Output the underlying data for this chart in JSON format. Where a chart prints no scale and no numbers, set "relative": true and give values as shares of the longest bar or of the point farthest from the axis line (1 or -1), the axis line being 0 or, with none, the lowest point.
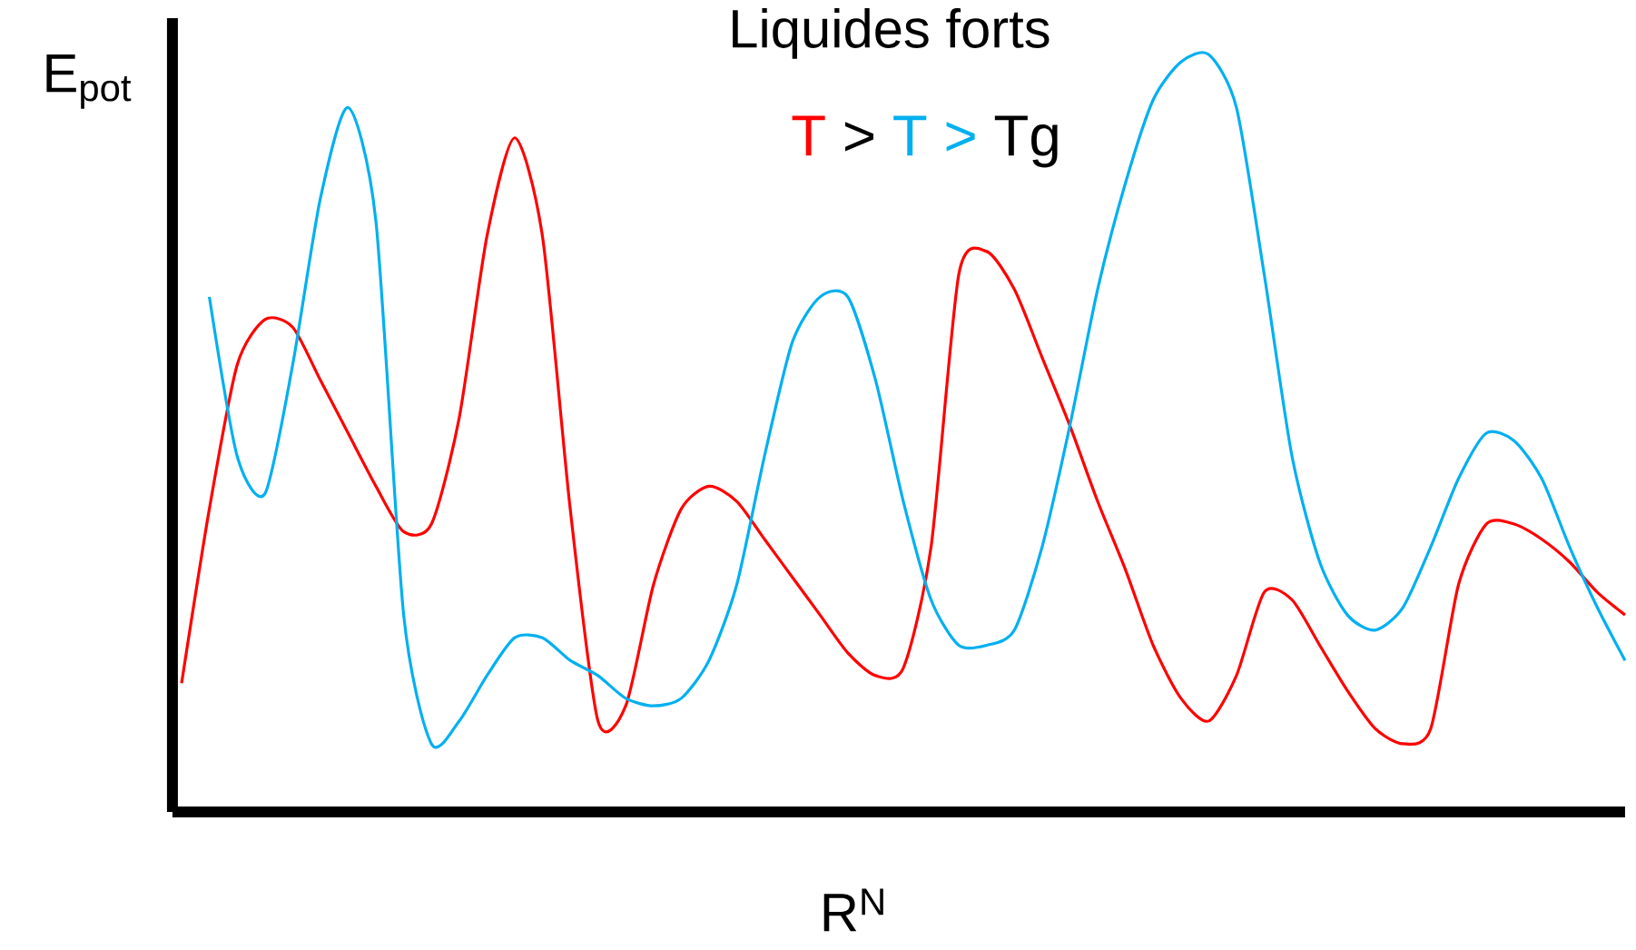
{
  "chart_data": {
    "type": "line",
    "relative": true,
    "title": "Liquides forts",
    "xlabel": "R$^{N}$",
    "ylabel": "E$_{pot}$",
    "annotations": [
      ">",
      ">",
      "Tg"
    ],
    "legend": "top",
    "categories": [
      null,
      null,
      null,
      null,
      null,
      null,
      null,
      null,
      null,
      null,
      null,
      null,
      null,
      null,
      null,
      null,
      null,
      null,
      null,
      null,
      null,
      null,
      null,
      null,
      null,
      null,
      null,
      null,
      null,
      null,
      null,
      null,
      null,
      null,
      null,
      null,
      null,
      null,
      null,
      null,
      null,
      null,
      null,
      null,
      null,
      null,
      null,
      null,
      null,
      null,
      null,
      null,
      null
    ],
    "series": [
      {
        "name": "T",
        "color": "#ff0000",
        "values": [
          0.17,
          0.4,
          0.59,
          0.65,
          0.64,
          0.57,
          0.5,
          0.43,
          0.37,
          0.38,
          0.52,
          0.76,
          0.89,
          0.76,
          0.4,
          0.12,
          0.14,
          0.3,
          0.4,
          0.43,
          0.41,
          0.36,
          0.31,
          0.26,
          0.21,
          0.18,
          0.19,
          0.35,
          0.71,
          0.74,
          0.69,
          0.6,
          0.51,
          0.41,
          0.32,
          0.22,
          0.15,
          0.12,
          0.18,
          0.29,
          0.28,
          0.22,
          0.16,
          0.11,
          0.09,
          0.11,
          0.3,
          0.38,
          0.38,
          0.36,
          0.33,
          0.29,
          0.26
        ]
      },
      {
        "name": "T",
        "color": "#00b0f0",
        "values": [
          null,
          0.68,
          0.47,
          0.42,
          0.59,
          0.81,
          0.93,
          0.78,
          0.26,
          0.09,
          0.12,
          0.18,
          0.23,
          0.23,
          0.2,
          0.18,
          0.15,
          0.14,
          0.15,
          0.2,
          0.3,
          0.47,
          0.62,
          0.68,
          0.68,
          0.57,
          0.41,
          0.28,
          0.22,
          0.22,
          0.24,
          0.35,
          0.51,
          0.69,
          0.83,
          0.94,
          0.99,
          1,
          0.93,
          0.71,
          0.47,
          0.33,
          0.26,
          0.24,
          0.27,
          0.35,
          0.44,
          0.5,
          0.49,
          0.44,
          0.35,
          0.27,
          0.2
        ]
      }
    ]
  }
}
